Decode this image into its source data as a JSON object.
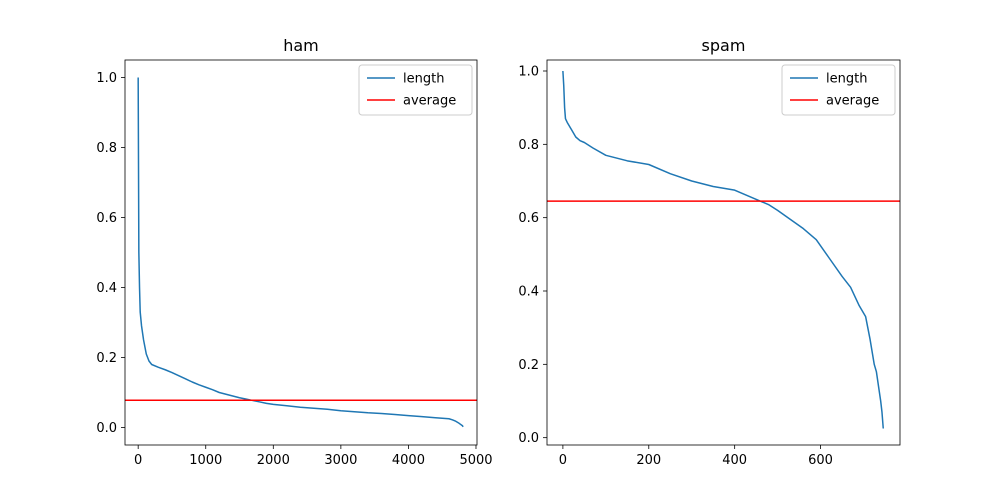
{
  "chart_data": [
    {
      "type": "line",
      "title": "ham",
      "xlabel": "",
      "ylabel": "",
      "xlim": [
        -195,
        5015
      ],
      "ylim": [
        -0.05,
        1.05
      ],
      "xticks": [
        0,
        1000,
        2000,
        3000,
        4000,
        5000
      ],
      "yticks": [
        0.0,
        0.2,
        0.4,
        0.6,
        0.8,
        1.0
      ],
      "grid": false,
      "legend": "top-right",
      "series": [
        {
          "name": "length",
          "color": "#1f77b4",
          "x": [
            0,
            10,
            20,
            30,
            50,
            80,
            120,
            160,
            200,
            300,
            400,
            500,
            600,
            700,
            800,
            900,
            1000,
            1100,
            1200,
            1300,
            1400,
            1500,
            1600,
            1700,
            1800,
            1900,
            2000,
            2200,
            2400,
            2600,
            2800,
            3000,
            3200,
            3400,
            3600,
            3800,
            4000,
            4200,
            4400,
            4600,
            4650,
            4700,
            4750,
            4800,
            4810
          ],
          "y": [
            1.0,
            0.5,
            0.4,
            0.33,
            0.29,
            0.25,
            0.21,
            0.19,
            0.18,
            0.172,
            0.165,
            0.157,
            0.148,
            0.139,
            0.13,
            0.122,
            0.115,
            0.108,
            0.1,
            0.095,
            0.09,
            0.085,
            0.081,
            0.077,
            0.073,
            0.069,
            0.066,
            0.062,
            0.058,
            0.055,
            0.052,
            0.048,
            0.045,
            0.042,
            0.04,
            0.037,
            0.034,
            0.031,
            0.028,
            0.025,
            0.022,
            0.018,
            0.012,
            0.005,
            0.002
          ]
        },
        {
          "name": "average",
          "color": "#ff0000",
          "type": "hline",
          "y": 0.078
        }
      ]
    },
    {
      "type": "line",
      "title": "spam",
      "xlabel": "",
      "ylabel": "",
      "xlim": [
        -37,
        785
      ],
      "ylim": [
        -0.02,
        1.03
      ],
      "xticks": [
        0,
        200,
        400,
        600
      ],
      "yticks": [
        0.0,
        0.2,
        0.4,
        0.6,
        0.8,
        1.0
      ],
      "grid": false,
      "legend": "top-right",
      "series": [
        {
          "name": "length",
          "color": "#1f77b4",
          "x": [
            0,
            2,
            4,
            6,
            10,
            15,
            20,
            30,
            40,
            50,
            70,
            100,
            150,
            200,
            250,
            300,
            350,
            400,
            430,
            460,
            480,
            500,
            530,
            560,
            590,
            620,
            650,
            670,
            690,
            705,
            715,
            725,
            730,
            735,
            740,
            743,
            745,
            746
          ],
          "y": [
            1.0,
            0.96,
            0.9,
            0.87,
            0.86,
            0.85,
            0.84,
            0.82,
            0.81,
            0.805,
            0.79,
            0.77,
            0.755,
            0.745,
            0.72,
            0.7,
            0.685,
            0.675,
            0.66,
            0.645,
            0.635,
            0.62,
            0.595,
            0.57,
            0.54,
            0.49,
            0.44,
            0.41,
            0.36,
            0.33,
            0.27,
            0.2,
            0.18,
            0.14,
            0.1,
            0.07,
            0.04,
            0.025
          ]
        },
        {
          "name": "average",
          "color": "#ff0000",
          "type": "hline",
          "y": 0.645
        }
      ]
    }
  ]
}
